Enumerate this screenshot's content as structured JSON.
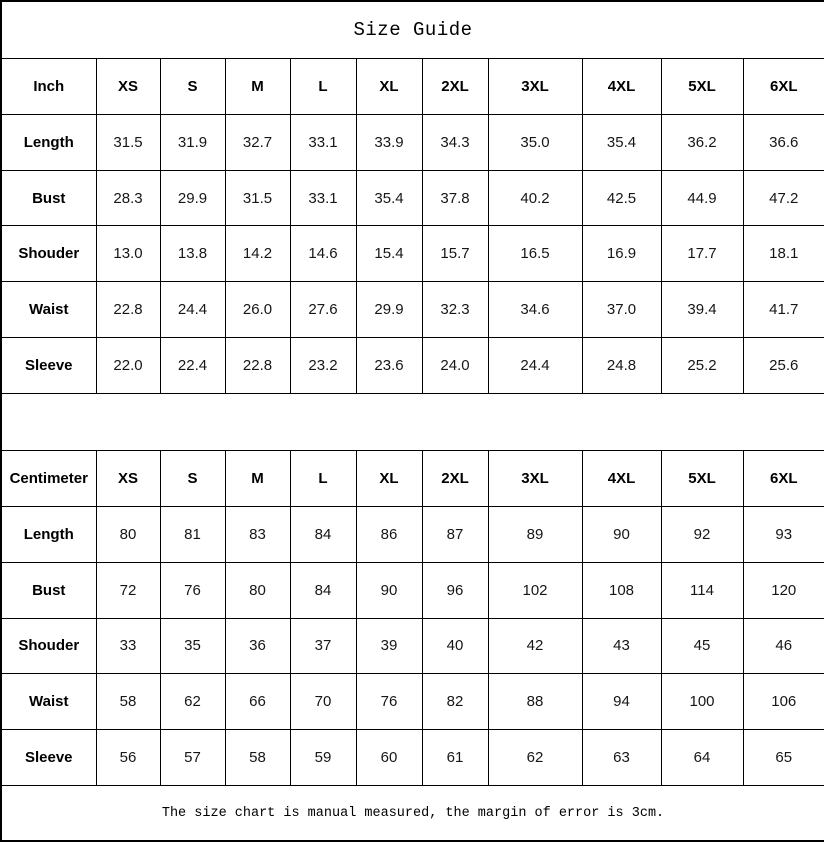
{
  "title": "Size Guide",
  "footer": "The size chart is manual measured, the margin of error is 3cm.",
  "tables": [
    {
      "unit_label": "Inch",
      "sizes": [
        "XS",
        "S",
        "M",
        "L",
        "XL",
        "2XL",
        "3XL",
        "4XL",
        "5XL",
        "6XL"
      ],
      "rows": [
        {
          "label": "Length",
          "values": [
            "31.5",
            "31.9",
            "32.7",
            "33.1",
            "33.9",
            "34.3",
            "35.0",
            "35.4",
            "36.2",
            "36.6"
          ]
        },
        {
          "label": "Bust",
          "values": [
            "28.3",
            "29.9",
            "31.5",
            "33.1",
            "35.4",
            "37.8",
            "40.2",
            "42.5",
            "44.9",
            "47.2"
          ]
        },
        {
          "label": "Shouder",
          "values": [
            "13.0",
            "13.8",
            "14.2",
            "14.6",
            "15.4",
            "15.7",
            "16.5",
            "16.9",
            "17.7",
            "18.1"
          ]
        },
        {
          "label": "Waist",
          "values": [
            "22.8",
            "24.4",
            "26.0",
            "27.6",
            "29.9",
            "32.3",
            "34.6",
            "37.0",
            "39.4",
            "41.7"
          ]
        },
        {
          "label": "Sleeve",
          "values": [
            "22.0",
            "22.4",
            "22.8",
            "23.2",
            "23.6",
            "24.0",
            "24.4",
            "24.8",
            "25.2",
            "25.6"
          ]
        }
      ]
    },
    {
      "unit_label": "Centimeter",
      "sizes": [
        "XS",
        "S",
        "M",
        "L",
        "XL",
        "2XL",
        "3XL",
        "4XL",
        "5XL",
        "6XL"
      ],
      "rows": [
        {
          "label": "Length",
          "values": [
            "80",
            "81",
            "83",
            "84",
            "86",
            "87",
            "89",
            "90",
            "92",
            "93"
          ]
        },
        {
          "label": "Bust",
          "values": [
            "72",
            "76",
            "80",
            "84",
            "90",
            "96",
            "102",
            "108",
            "114",
            "120"
          ]
        },
        {
          "label": "Shouder",
          "values": [
            "33",
            "35",
            "36",
            "37",
            "39",
            "40",
            "42",
            "43",
            "45",
            "46"
          ]
        },
        {
          "label": "Waist",
          "values": [
            "58",
            "62",
            "66",
            "70",
            "76",
            "82",
            "88",
            "94",
            "100",
            "106"
          ]
        },
        {
          "label": "Sleeve",
          "values": [
            "56",
            "57",
            "58",
            "59",
            "60",
            "61",
            "62",
            "63",
            "64",
            "65"
          ]
        }
      ]
    }
  ],
  "colors": {
    "border": "#000000",
    "text": "#000000",
    "background": "#ffffff"
  }
}
